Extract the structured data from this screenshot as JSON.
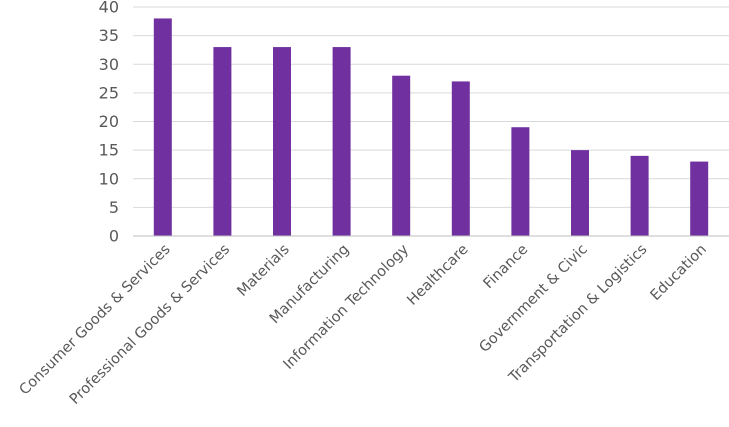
{
  "chart_data": {
    "type": "bar",
    "categories": [
      "Consumer Goods & Services",
      "Professional Goods & Services",
      "Materials",
      "Manufacturing",
      "Information Technology",
      "Healthcare",
      "Finance",
      "Government & Civic",
      "Transportation & Logistics",
      "Education"
    ],
    "values": [
      38,
      33,
      33,
      33,
      28,
      27,
      19,
      15,
      14,
      13
    ],
    "title": "",
    "xlabel": "",
    "ylabel": "",
    "ylim": [
      0,
      40
    ],
    "yticks": [
      0,
      5,
      10,
      15,
      20,
      25,
      30,
      35,
      40
    ],
    "grid": true,
    "legend": "none",
    "bar_color": "#7030a0"
  }
}
